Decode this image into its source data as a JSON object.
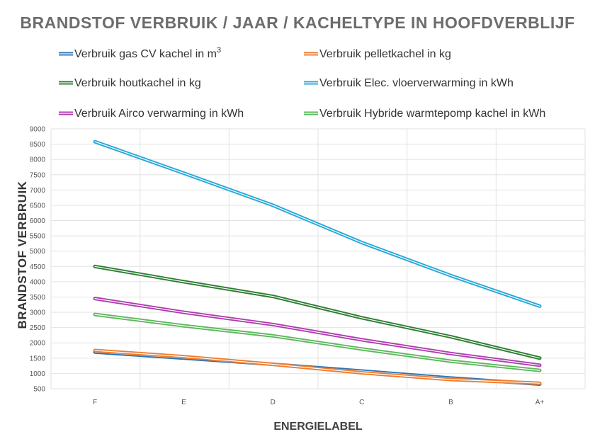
{
  "chart_data": {
    "type": "line",
    "title": "BRANDSTOF VERBRUIK / JAAR / KACHELTYPE IN HOOFDVERBLIJF",
    "xlabel": "ENERGIELABEL",
    "ylabel": "BRANDSTOF VERBRUIK",
    "categories": [
      "F",
      "E",
      "D",
      "C",
      "B",
      "A+"
    ],
    "ylim": [
      500,
      9000
    ],
    "yticks": [
      500,
      1000,
      1500,
      2000,
      2500,
      3000,
      3500,
      4000,
      4500,
      5000,
      5500,
      6000,
      6500,
      7000,
      7500,
      8000,
      8500,
      9000
    ],
    "grid": true,
    "legend_position": "top",
    "series": [
      {
        "name": "Verbruik gas CV kachel in m",
        "name_sup": "3",
        "color": "#2e75b6",
        "values": [
          1700,
          1500,
          1300,
          1080,
          850,
          650
        ]
      },
      {
        "name": "Verbruik pelletkachel in kg",
        "color": "#ed7d31",
        "values": [
          1750,
          1550,
          1300,
          1020,
          800,
          680
        ]
      },
      {
        "name": "Verbruik houtkachel in kg",
        "color": "#2e7d32",
        "values": [
          4500,
          4000,
          3520,
          2820,
          2200,
          1500
        ]
      },
      {
        "name": "Verbruik Elec. vloerverwarming in kWh",
        "color": "#29a8d8",
        "values": [
          8580,
          7550,
          6500,
          5280,
          4200,
          3200
        ]
      },
      {
        "name": "Verbruik Airco verwarming in kWh",
        "color": "#b03db0",
        "values": [
          3450,
          3000,
          2600,
          2100,
          1650,
          1270
        ]
      },
      {
        "name": "Verbruik Hybride  warmtepomp kachel in kWh",
        "color": "#5cb85c",
        "values": [
          2930,
          2560,
          2230,
          1800,
          1400,
          1100
        ]
      }
    ]
  }
}
